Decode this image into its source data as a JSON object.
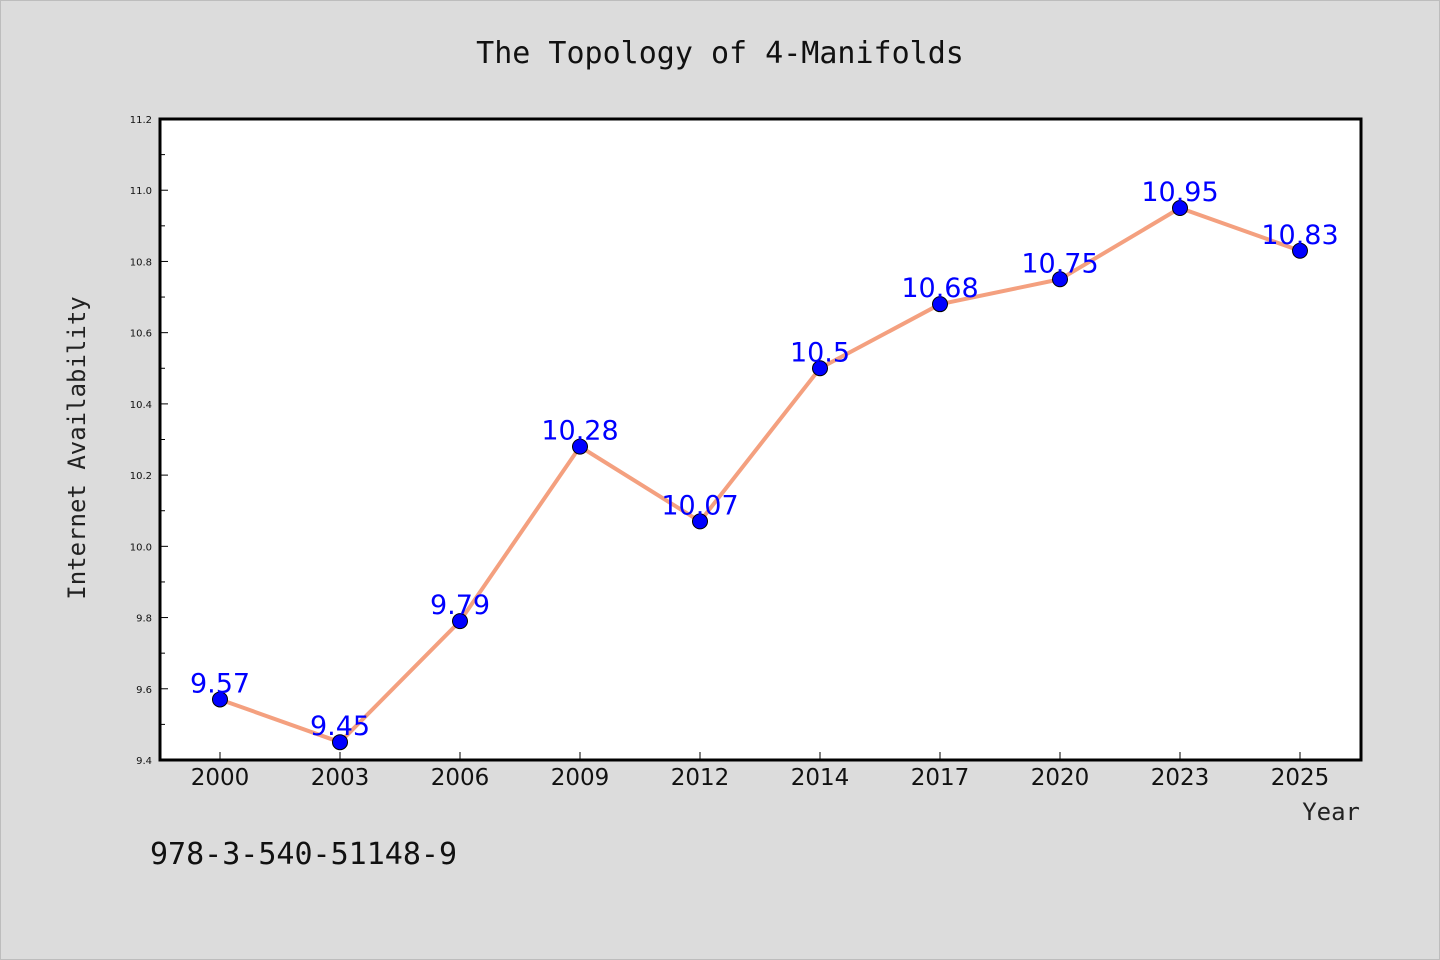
{
  "chart_data": {
    "type": "line",
    "title": "The Topology of 4-Manifolds",
    "xlabel": "Year",
    "ylabel": "Internet Availability",
    "categories": [
      "2000",
      "2003",
      "2006",
      "2009",
      "2012",
      "2014",
      "2017",
      "2020",
      "2023",
      "2025"
    ],
    "values": [
      9.57,
      9.45,
      9.79,
      10.28,
      10.07,
      10.5,
      10.68,
      10.75,
      10.95,
      10.83
    ],
    "data_labels": [
      "9.57",
      "9.45",
      "9.79",
      "10.28",
      "10.07",
      "10.5",
      "10.68",
      "10.75",
      "10.95",
      "10.83"
    ],
    "ylim": [
      9.4,
      11.2
    ],
    "yticks": [
      "9.4",
      "9.6",
      "9.8",
      "10.0",
      "10.2",
      "10.4",
      "10.6",
      "10.8",
      "11.0",
      "11.2"
    ],
    "grid": false,
    "line_color": "#f4a07f",
    "marker_color": "#0000ff",
    "label_color": "#0000ff",
    "background_color": "#dcdcdc",
    "plot_background": "#ffffff"
  },
  "footer": {
    "isbn": "978-3-540-51148-9"
  }
}
